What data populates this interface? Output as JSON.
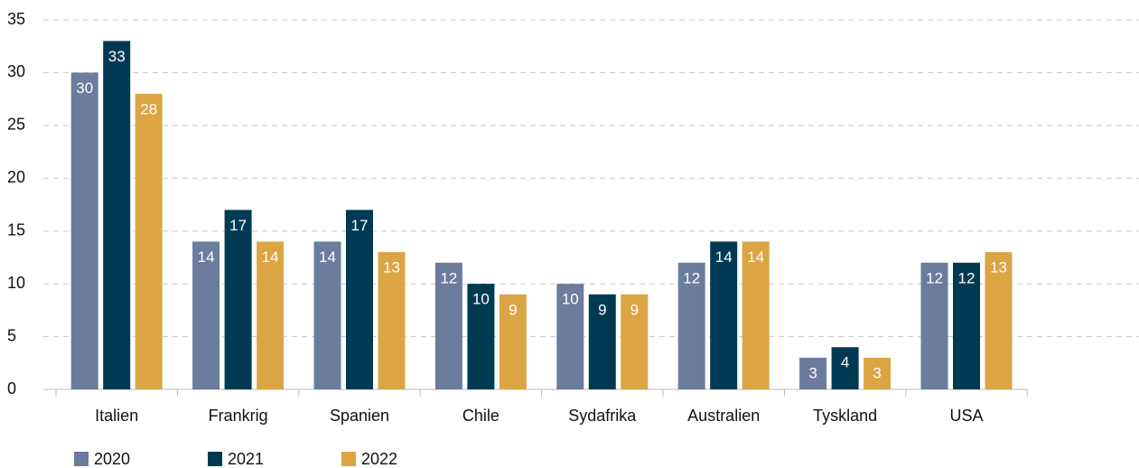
{
  "chart_data": {
    "type": "bar",
    "categories": [
      "Italien",
      "Frankrig",
      "Spanien",
      "Chile",
      "Sydafrika",
      "Australien",
      "Tyskland",
      "USA"
    ],
    "series": [
      {
        "name": "2020",
        "color": "#6b7c9c",
        "values": [
          30,
          14,
          14,
          12,
          10,
          12,
          3,
          12
        ]
      },
      {
        "name": "2021",
        "color": "#003a52",
        "values": [
          33,
          17,
          17,
          10,
          9,
          14,
          4,
          12
        ]
      },
      {
        "name": "2022",
        "color": "#dba544",
        "values": [
          28,
          14,
          13,
          9,
          9,
          14,
          3,
          13
        ]
      }
    ],
    "ylim": [
      0,
      35
    ],
    "yticks": [
      0,
      5,
      10,
      15,
      20,
      25,
      30,
      35
    ],
    "grid": true,
    "legend": "bottom-left"
  }
}
